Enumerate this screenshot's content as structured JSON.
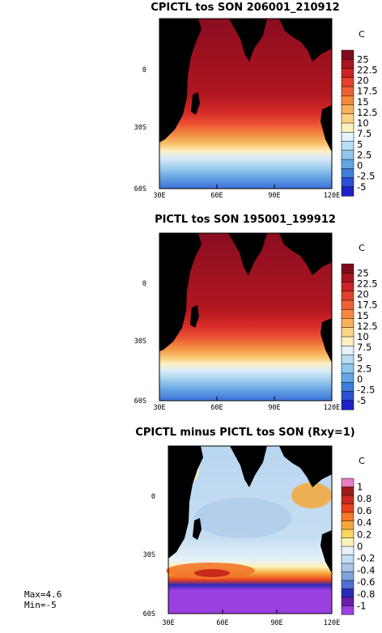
{
  "chart_data": [
    {
      "type": "heatmap",
      "title": "CPICTL tos SON 206001_210912",
      "units": "C",
      "x_ticks": [
        "30E",
        "60E",
        "90E",
        "120E"
      ],
      "y_ticks": [
        "0",
        "30S",
        "60S"
      ],
      "xlim": [
        30,
        120
      ],
      "ylim": [
        -60,
        30
      ],
      "colorbar": {
        "labels": [
          "25",
          "22.5",
          "20",
          "17.5",
          "15",
          "12.5",
          "10",
          "7.5",
          "5",
          "2.5",
          "0",
          "-2.5",
          "-5"
        ],
        "colors": [
          "#7f0a1e",
          "#a8141f",
          "#cc2227",
          "#e2402c",
          "#ee6134",
          "#f5893f",
          "#f9b15a",
          "#fbd386",
          "#fdf0bf",
          "#e4f3fb",
          "#b9def3",
          "#8fc6ec",
          "#63a6e2",
          "#3f7edb",
          "#2c4fd4",
          "#2020c8"
        ]
      },
      "land_color": "#000000"
    },
    {
      "type": "heatmap",
      "title": "PICTL tos SON 195001_199912",
      "units": "C",
      "x_ticks": [
        "30E",
        "60E",
        "90E",
        "120E"
      ],
      "y_ticks": [
        "0",
        "30S",
        "60S"
      ],
      "xlim": [
        30,
        120
      ],
      "ylim": [
        -60,
        30
      ],
      "colorbar": {
        "labels": [
          "25",
          "22.5",
          "20",
          "17.5",
          "15",
          "12.5",
          "10",
          "7.5",
          "5",
          "2.5",
          "0",
          "-2.5",
          "-5"
        ],
        "colors": [
          "#7f0a1e",
          "#a8141f",
          "#cc2227",
          "#e2402c",
          "#ee6134",
          "#f5893f",
          "#f9b15a",
          "#fbd386",
          "#fdf0bf",
          "#e4f3fb",
          "#b9def3",
          "#8fc6ec",
          "#63a6e2",
          "#3f7edb",
          "#2c4fd4",
          "#2020c8"
        ]
      },
      "land_color": "#000000"
    },
    {
      "type": "heatmap",
      "title": "CPICTL minus PICTL tos SON (Rxy=1)",
      "units": "C",
      "x_ticks": [
        "30E",
        "60E",
        "90E",
        "120E"
      ],
      "y_ticks": [
        "0",
        "30S",
        "60S"
      ],
      "xlim": [
        30,
        120
      ],
      "ylim": [
        -60,
        30
      ],
      "colorbar": {
        "labels": [
          "1",
          "0.8",
          "0.6",
          "0.4",
          "0.2",
          "0",
          "-0.2",
          "-0.4",
          "-0.6",
          "-0.8",
          "-1"
        ],
        "colors": [
          "#e87fc0",
          "#a01a1a",
          "#c82a1e",
          "#e8401d",
          "#f2782a",
          "#f7a83a",
          "#fad65a",
          "#fdf2b8",
          "#e6f2f8",
          "#c7def2",
          "#a8c6ea",
          "#7fa3df",
          "#4e6fd3",
          "#2a2ab8",
          "#6a1ea8",
          "#9a3fe0"
        ]
      },
      "land_color": "#000000",
      "max_label": "Max=4.6",
      "min_label": "Min=-5"
    }
  ]
}
